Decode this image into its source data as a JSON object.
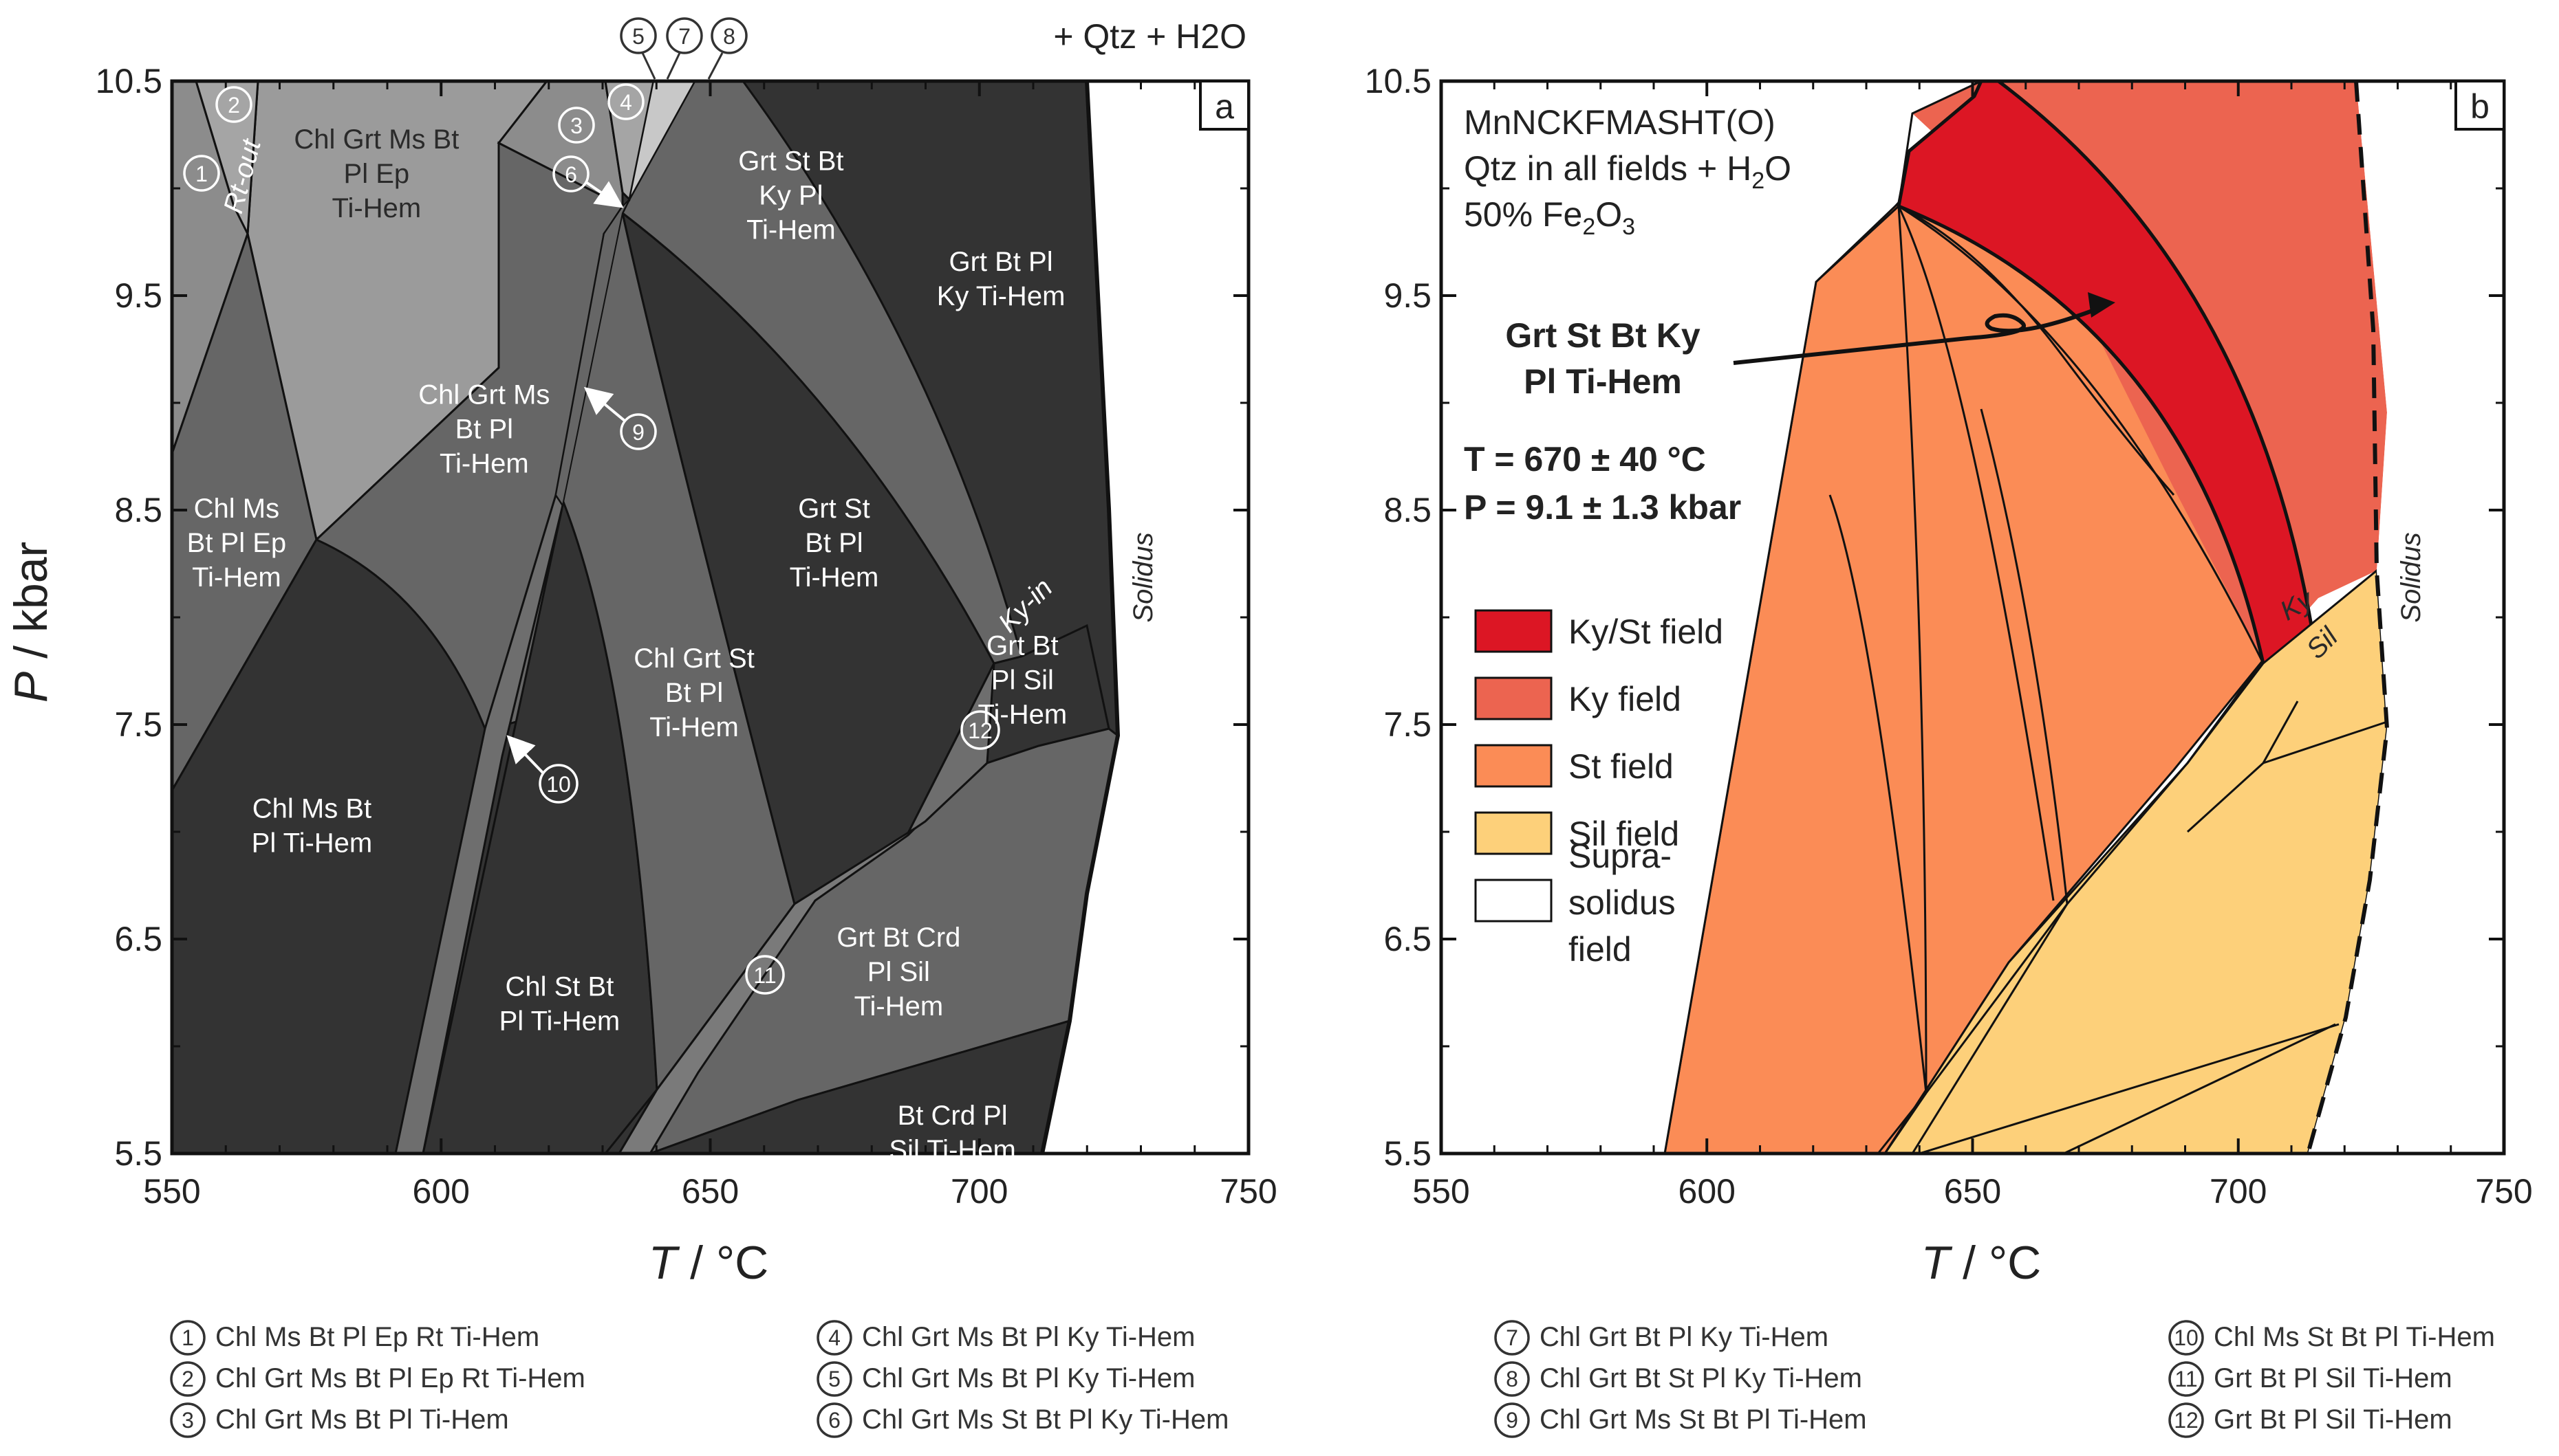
{
  "chart_data": [
    {
      "type": "phase-diagram",
      "panel": "a",
      "title": "+ Qtz + H2O",
      "xlabel": "T / °C",
      "ylabel": "P / kbar",
      "xlim": [
        550,
        750
      ],
      "ylim": [
        5.5,
        10.5
      ],
      "xticks": [
        "550",
        "600",
        "650",
        "700",
        "750"
      ],
      "yticks": [
        "5.5",
        "6.5",
        "7.5",
        "8.5",
        "9.5",
        "10.5"
      ],
      "solidus_label": "Solidus",
      "line_labels": [
        "Rt-out",
        "Ky-in"
      ],
      "fields": [
        {
          "lines": [
            "Chl Grt Ms Bt",
            "Pl Ep",
            "Ti-Hem"
          ],
          "T": 588,
          "P": 10.07,
          "shade": "light"
        },
        {
          "lines": [
            "Chl Ms",
            "Bt Pl Ep",
            "Ti-Hem"
          ],
          "T": 562,
          "P": 8.35,
          "shade": "medium"
        },
        {
          "lines": [
            "Chl Grt Ms",
            "Bt Pl",
            "Ti-Hem"
          ],
          "T": 608,
          "P": 8.88,
          "shade": "medium"
        },
        {
          "lines": [
            "Grt St Bt",
            "Ky Pl",
            "Ti-Hem"
          ],
          "T": 665,
          "P": 9.97,
          "shade": "medium"
        },
        {
          "lines": [
            "Grt Bt Pl",
            "Ky Ti-Hem"
          ],
          "T": 704,
          "P": 9.58,
          "shade": "dark"
        },
        {
          "lines": [
            "Grt St",
            "Bt Pl",
            "Ti-Hem"
          ],
          "T": 673,
          "P": 8.35,
          "shade": "dark"
        },
        {
          "lines": [
            "Chl Grt St",
            "Bt Pl",
            "Ti-Hem"
          ],
          "T": 647,
          "P": 7.65,
          "shade": "medium"
        },
        {
          "lines": [
            "Chl Ms Bt",
            "Pl Ti-Hem"
          ],
          "T": 576,
          "P": 7.03,
          "shade": "dark"
        },
        {
          "lines": [
            "Chl St Bt",
            "Pl Ti-Hem"
          ],
          "T": 622,
          "P": 6.2,
          "shade": "dark"
        },
        {
          "lines": [
            "Grt Bt",
            "Pl Sil",
            "Ti-Hem"
          ],
          "T": 708,
          "P": 7.71,
          "shade": "dark"
        },
        {
          "lines": [
            "Grt Bt Crd",
            "Pl Sil",
            "Ti-Hem"
          ],
          "T": 685,
          "P": 6.35,
          "shade": "medium"
        },
        {
          "lines": [
            "Bt Crd Pl",
            "Sil Ti-Hem"
          ],
          "T": 695,
          "P": 5.6,
          "shade": "dark"
        }
      ],
      "numbered_fields": [
        {
          "id": "1",
          "label": "Chl Ms Bt Pl Ep Rt Ti-Hem"
        },
        {
          "id": "2",
          "label": "Chl Grt Ms Bt Pl Ep Rt Ti-Hem"
        },
        {
          "id": "3",
          "label": "Chl Grt Ms Bt Pl Ti-Hem"
        },
        {
          "id": "4",
          "label": "Chl Grt Ms Bt Pl Ky Ti-Hem"
        },
        {
          "id": "5",
          "label": "Chl Grt Ms Bt Pl Ky Ti-Hem"
        },
        {
          "id": "6",
          "label": "Chl Grt Ms St  Bt Pl Ky Ti-Hem"
        },
        {
          "id": "7",
          "label": "Chl Grt Bt Pl Ky Ti-Hem"
        },
        {
          "id": "8",
          "label": "Chl Grt Bt St Pl Ky Ti-Hem"
        },
        {
          "id": "9",
          "label": "Chl Grt Ms St Bt Pl Ti-Hem"
        },
        {
          "id": "10",
          "label": "Chl Ms St Bt Pl Ti-Hem"
        },
        {
          "id": "11",
          "label": "Grt Bt Pl Sil Ti-Hem"
        },
        {
          "id": "12",
          "label": "Grt Bt Pl Sil Ti-Hem"
        }
      ]
    },
    {
      "type": "phase-diagram",
      "panel": "b",
      "xlabel": "T / °C",
      "ylabel": "P / kbar",
      "xlim": [
        550,
        750
      ],
      "ylim": [
        5.5,
        10.5
      ],
      "xticks": [
        "550",
        "600",
        "650",
        "700",
        "750"
      ],
      "yticks": [
        "5.5",
        "6.5",
        "7.5",
        "8.5",
        "9.5",
        "10.5"
      ],
      "system": "MnNCKFMASHT(O)",
      "qtz_note": "Qtz in all fields + H",
      "fe_note": "50% Fe",
      "sub2": "2",
      "sub3": "3",
      "sub_o": "O",
      "peak_assemblage": [
        "Grt St Bt Ky",
        "Pl Ti-Hem"
      ],
      "T_result": "T = 670 ± 40 °C",
      "P_result": "P = 9.1 ± 1.3 kbar",
      "T_value": 670,
      "T_error": 40,
      "P_value": 9.1,
      "P_error": 1.3,
      "line_labels": [
        "Ky",
        "Sil",
        "Solidus"
      ],
      "legend": [
        {
          "label": "Ky/St field",
          "color": "#dc1624"
        },
        {
          "label": "Ky field",
          "color": "#ec6450"
        },
        {
          "label": "St field",
          "color": "#fb8c56"
        },
        {
          "label": "Sil field",
          "color": "#fdd07a"
        },
        {
          "label": "Supra-solidus field",
          "color": "#ffffff",
          "lines": [
            "Supra-",
            "solidus",
            "field"
          ]
        }
      ]
    }
  ]
}
